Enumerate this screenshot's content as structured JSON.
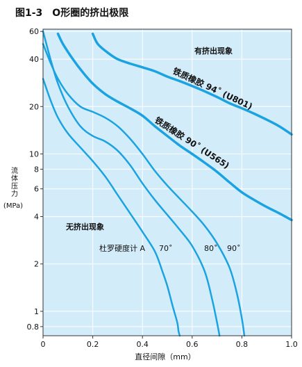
{
  "figure": {
    "title": "图1-3　O形圈的挤出极限"
  },
  "chart_data": {
    "type": "line",
    "title": "图1-3　O形圈的挤出极限",
    "xlabel": "直径间隙（mm）",
    "ylabel": "流体压力",
    "ylabel_unit": "(MPa)",
    "x_scale": "linear",
    "y_scale": "log",
    "xlim": [
      0,
      1.0
    ],
    "ylim": [
      0.7,
      62
    ],
    "x_ticks": [
      0,
      0.2,
      0.4,
      0.6,
      0.8,
      1.0
    ],
    "x_tick_labels": [
      "0",
      "0.2",
      "0.4",
      "0.6",
      "0.8",
      "1.0"
    ],
    "y_ticks": [
      0.8,
      1,
      2,
      4,
      6,
      8,
      10,
      20,
      40,
      60
    ],
    "y_tick_labels": [
      "0.8",
      "1",
      "2",
      "4",
      "6",
      "8",
      "10",
      "20",
      "40",
      "60"
    ],
    "grid": true,
    "background_color": "#d3ecfa",
    "line_color": "#1aa3e0",
    "annotations": {
      "region_upper": "有挤出现象",
      "region_lower": "无挤出现象",
      "hardness_prefix": "杜罗硬度计 A",
      "hardness_70": "70˚",
      "hardness_80": "80˚",
      "hardness_90": "90˚"
    },
    "series": [
      {
        "name": "铁质橡胶 94˚ (U801)",
        "x": [
          0.2,
          0.22,
          0.26,
          0.3,
          0.35,
          0.4,
          0.45,
          0.5,
          0.55,
          0.6,
          0.65,
          0.7,
          0.75,
          0.8,
          0.85,
          0.9,
          0.95,
          1.0
        ],
        "y": [
          58,
          50,
          44,
          40,
          37.5,
          35.5,
          33.5,
          31,
          29,
          27,
          25,
          23,
          21,
          19.5,
          18,
          16.5,
          15,
          13.3
        ]
      },
      {
        "name": "铁质橡胶 90˚ (U565)",
        "x": [
          0.06,
          0.08,
          0.12,
          0.16,
          0.2,
          0.25,
          0.3,
          0.35,
          0.4,
          0.45,
          0.5,
          0.55,
          0.6,
          0.65,
          0.7,
          0.75,
          0.8,
          0.85,
          0.9,
          0.95,
          1.0
        ],
        "y": [
          58,
          50,
          40,
          33,
          28,
          24,
          21.5,
          19.5,
          17.5,
          15,
          13,
          11.3,
          10,
          8.8,
          7.7,
          6.6,
          5.7,
          5.1,
          4.6,
          4.2,
          3.8
        ]
      },
      {
        "name": "",
        "x": [
          0.0,
          0.03,
          0.06,
          0.1,
          0.15,
          0.2,
          0.25,
          0.3,
          0.35,
          0.4,
          0.45,
          0.48,
          0.5,
          0.52,
          0.54,
          0.545,
          0.55
        ],
        "y": [
          30,
          22,
          17,
          13.5,
          11,
          9,
          7.2,
          5.5,
          4.2,
          3.2,
          2.4,
          1.8,
          1.45,
          1.1,
          0.85,
          0.75,
          0.7
        ]
      },
      {
        "name": "",
        "x": [
          0.0,
          0.03,
          0.06,
          0.1,
          0.15,
          0.2,
          0.25,
          0.3,
          0.35,
          0.4,
          0.45,
          0.5,
          0.55,
          0.6,
          0.65,
          0.68,
          0.7,
          0.71
        ],
        "y": [
          60,
          40,
          28,
          20,
          15,
          13,
          12,
          10.5,
          8.5,
          6.5,
          5.1,
          4.1,
          3.3,
          2.6,
          1.8,
          1.2,
          0.85,
          0.7
        ]
      },
      {
        "name": "",
        "x": [
          0.0,
          0.03,
          0.06,
          0.1,
          0.15,
          0.2,
          0.25,
          0.3,
          0.35,
          0.4,
          0.45,
          0.5,
          0.55,
          0.6,
          0.65,
          0.7,
          0.75,
          0.78,
          0.8,
          0.81
        ],
        "y": [
          50,
          38,
          30,
          24,
          20,
          18.5,
          17,
          15,
          12.5,
          10,
          7.8,
          6.3,
          5.2,
          4.3,
          3.5,
          2.7,
          1.9,
          1.3,
          0.9,
          0.7
        ]
      }
    ]
  }
}
